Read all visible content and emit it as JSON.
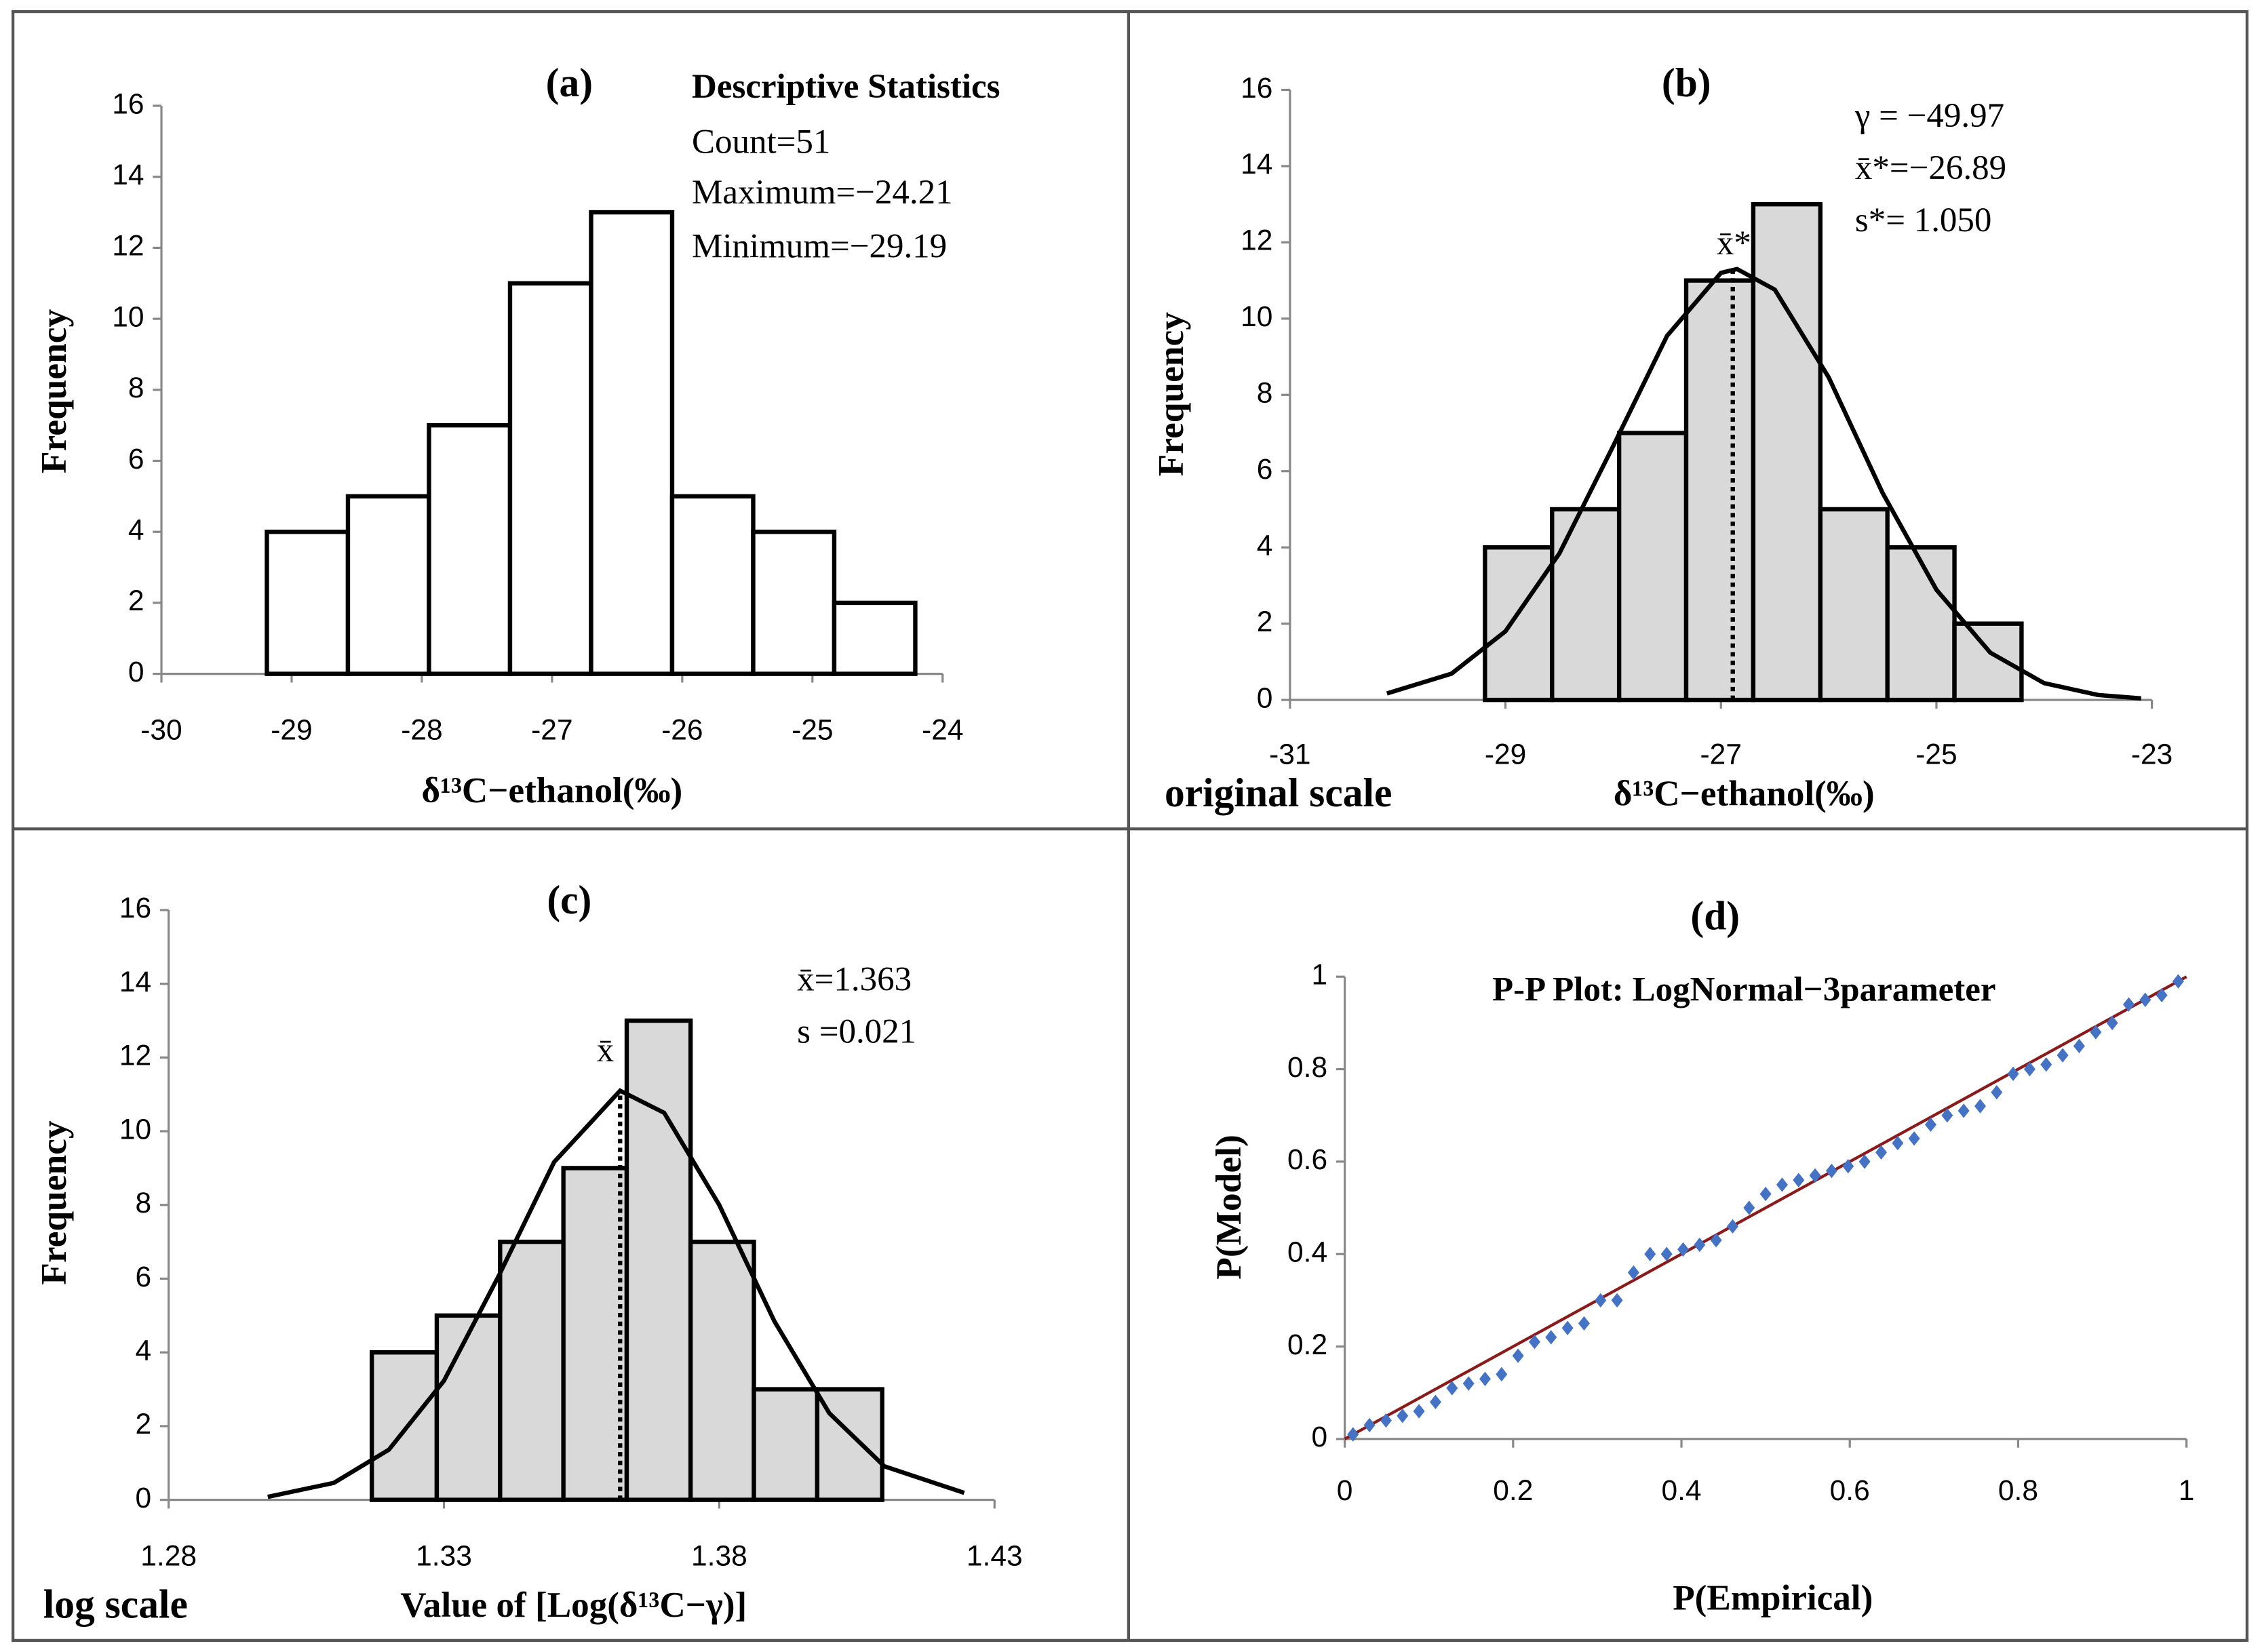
{
  "chart_data": [
    {
      "type": "histogram",
      "title": "(a)",
      "stats_title": "Descriptive Statistics",
      "annotations": [
        "Count=51",
        "Maximum=−24.21",
        "Minimum=−29.19"
      ],
      "x_label": "δ¹³C−ethanol(‰)",
      "y_label": "Frequency",
      "bins": [
        -29.19,
        -28.5675,
        -27.945,
        -27.3225,
        -26.7,
        -26.0775,
        -25.455,
        -24.8325,
        -24.21
      ],
      "counts": [
        4,
        5,
        7,
        11,
        13,
        5,
        4,
        2
      ],
      "bar_color": "#ffffff",
      "xlim": [
        -30,
        -24
      ],
      "xticks": [
        -30,
        -29,
        -28,
        -27,
        -26,
        -25,
        -24
      ],
      "ylim": [
        0,
        16
      ],
      "yticks": [
        0,
        2,
        4,
        6,
        8,
        10,
        12,
        14,
        16
      ]
    },
    {
      "type": "histogram",
      "title": "(b)",
      "annotations": [
        "γ = −49.97",
        "x̄*=−26.89",
        "s*= 1.050"
      ],
      "mean_label": "x̄*",
      "mean_line": -26.89,
      "scale_label": "original scale",
      "x_label": "δ¹³C−ethanol(‰)",
      "y_label": "Frequency",
      "bins": [
        -29.19,
        -28.5675,
        -27.945,
        -27.3225,
        -26.7,
        -26.0775,
        -25.455,
        -24.8325,
        -24.21
      ],
      "counts": [
        4,
        5,
        7,
        11,
        13,
        5,
        4,
        2
      ],
      "bar_color": "#d9d9d9",
      "curve": {
        "x": [
          -30.1,
          -29.5,
          -29,
          -28.5,
          -28,
          -27.5,
          -27,
          -26.85,
          -26.5,
          -26,
          -25.5,
          -25,
          -24.5,
          -24,
          -23.5,
          -23.1
        ],
        "y": [
          0.17,
          0.69,
          1.8,
          3.84,
          6.66,
          9.55,
          11.2,
          11.3,
          10.76,
          8.46,
          5.43,
          2.89,
          1.24,
          0.44,
          0.13,
          0.04
        ]
      },
      "xlim": [
        -31,
        -23
      ],
      "xticks": [
        -31,
        -29,
        -27,
        -25,
        -23
      ],
      "ylim": [
        0,
        16
      ],
      "yticks": [
        0,
        2,
        4,
        6,
        8,
        10,
        12,
        14,
        16
      ]
    },
    {
      "type": "histogram",
      "title": "(c)",
      "annotations": [
        "x̄=1.363",
        "s =0.021"
      ],
      "mean_label": "x̄",
      "mean_line": 1.362,
      "scale_label": "log scale",
      "x_label": "Value of [Log(δ¹³C−γ)]",
      "y_label": "Frequency",
      "bins": [
        1.3169,
        1.3287,
        1.3402,
        1.3517,
        1.3632,
        1.3748,
        1.3863,
        1.3978,
        1.4096
      ],
      "counts": [
        4,
        5,
        7,
        9,
        13,
        7,
        3,
        3
      ],
      "bar_color": "#d9d9d9",
      "curve": {
        "x": [
          1.298,
          1.31,
          1.32,
          1.33,
          1.34,
          1.35,
          1.362,
          1.37,
          1.38,
          1.39,
          1.4,
          1.41,
          1.4245
        ],
        "y": [
          0.08,
          0.46,
          1.36,
          3.23,
          6.09,
          9.16,
          11.1,
          10.5,
          8.0,
          4.85,
          2.35,
          0.91,
          0.19
        ]
      },
      "xlim": [
        1.28,
        1.43
      ],
      "xticks": [
        1.28,
        1.33,
        1.38,
        1.43
      ],
      "ylim": [
        0,
        16
      ],
      "yticks": [
        0,
        2,
        4,
        6,
        8,
        10,
        12,
        14,
        16
      ]
    },
    {
      "type": "scatter",
      "title": "(d)",
      "subtitle": "P-P Plot: LogNormal−3parameter",
      "x_label": "P(Empirical)",
      "y_label": "P(Model)",
      "points": {
        "color": "#4472c4",
        "x": [
          0.0098,
          0.0294,
          0.049,
          0.0686,
          0.0882,
          0.1078,
          0.1275,
          0.1471,
          0.1667,
          0.1863,
          0.2059,
          0.2255,
          0.2451,
          0.2647,
          0.2843,
          0.3039,
          0.3235,
          0.3431,
          0.3627,
          0.3824,
          0.402,
          0.4216,
          0.4412,
          0.4608,
          0.4804,
          0.5,
          0.5196,
          0.5392,
          0.5588,
          0.5784,
          0.598,
          0.6176,
          0.6373,
          0.6569,
          0.6765,
          0.6961,
          0.7157,
          0.7353,
          0.7549,
          0.7745,
          0.7941,
          0.8137,
          0.8333,
          0.8529,
          0.8725,
          0.8922,
          0.9118,
          0.9314,
          0.951,
          0.9706,
          0.9902
        ],
        "y": [
          0.01,
          0.03,
          0.04,
          0.05,
          0.06,
          0.08,
          0.11,
          0.12,
          0.13,
          0.14,
          0.18,
          0.21,
          0.22,
          0.24,
          0.25,
          0.3,
          0.3,
          0.36,
          0.4,
          0.4,
          0.41,
          0.42,
          0.43,
          0.46,
          0.5,
          0.53,
          0.55,
          0.56,
          0.57,
          0.58,
          0.59,
          0.6,
          0.62,
          0.64,
          0.65,
          0.68,
          0.7,
          0.71,
          0.72,
          0.75,
          0.79,
          0.8,
          0.81,
          0.83,
          0.85,
          0.88,
          0.9,
          0.94,
          0.95,
          0.96,
          0.99
        ]
      },
      "line": {
        "color": "#8b1a1a",
        "x": [
          0,
          1
        ],
        "y": [
          0,
          1
        ]
      },
      "xlim": [
        0,
        1
      ],
      "xticks": [
        0,
        0.2,
        0.4,
        0.6,
        0.8,
        1
      ],
      "ylim": [
        0,
        1
      ],
      "yticks": [
        0,
        0.2,
        0.4,
        0.6,
        0.8,
        1
      ]
    }
  ]
}
